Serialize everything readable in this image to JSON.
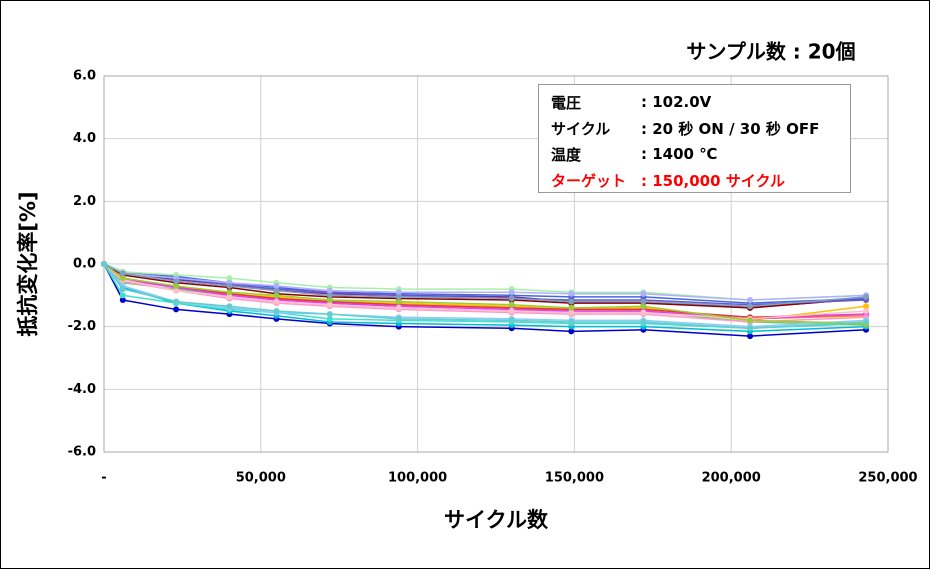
{
  "chart_data": {
    "type": "line",
    "title": "サンプル数 : 20個",
    "x_label": "サイクル数",
    "y_label": "抵抗変化率[%]",
    "annotation": [
      [
        "電圧",
        ": 102.0V"
      ],
      [
        "サイクル",
        ": 20 秒 ON / 30 秒 OFF"
      ],
      [
        "温度",
        ": 1400 ℃"
      ],
      [
        "ターゲット",
        ": 150,000 サイクル"
      ]
    ],
    "xlim": [
      0,
      250000
    ],
    "ylim": [
      -6,
      6
    ],
    "xticks": [
      {
        "value": 0,
        "label": "-"
      },
      {
        "value": 50000,
        "label": "50,000"
      },
      {
        "value": 100000,
        "label": "100,000"
      },
      {
        "value": 150000,
        "label": "150,000"
      },
      {
        "value": 200000,
        "label": "200,000"
      },
      {
        "value": 250000,
        "label": "250,000"
      }
    ],
    "yticks": [
      {
        "value": -6,
        "label": "-6.0"
      },
      {
        "value": -4,
        "label": "-4.0"
      },
      {
        "value": -2,
        "label": "-2.0"
      },
      {
        "value": 0,
        "label": "0.0"
      },
      {
        "value": 2,
        "label": "2.0"
      },
      {
        "value": 4,
        "label": "4.0"
      },
      {
        "value": 6,
        "label": "6.0"
      }
    ],
    "grid": true,
    "x": [
      0,
      6000,
      23000,
      40000,
      55000,
      72000,
      94000,
      130000,
      149000,
      172000,
      206000,
      243000
    ],
    "series": [
      {
        "color": "#0000cc",
        "values": [
          0,
          -1.15,
          -1.45,
          -1.6,
          -1.75,
          -1.9,
          -2.0,
          -2.05,
          -2.15,
          -2.1,
          -2.3,
          -2.1
        ]
      },
      {
        "color": "#00bcd4",
        "values": [
          0,
          -0.75,
          -1.25,
          -1.5,
          -1.65,
          -1.85,
          -1.9,
          -1.95,
          -2.0,
          -2.0,
          -2.15,
          -2.0
        ]
      },
      {
        "color": "#40e0d0",
        "values": [
          0,
          -1.0,
          -1.25,
          -1.45,
          -1.55,
          -1.75,
          -1.8,
          -1.85,
          -1.9,
          -1.9,
          -2.05,
          -1.9
        ]
      },
      {
        "color": "#7cc36e",
        "values": [
          0,
          -0.6,
          -0.8,
          -1.0,
          -1.1,
          -1.25,
          -1.35,
          -1.45,
          -1.55,
          -1.5,
          -1.85,
          -1.95
        ]
      },
      {
        "color": "#ffc000",
        "values": [
          0,
          -0.45,
          -0.75,
          -0.95,
          -1.05,
          -1.2,
          -1.25,
          -1.35,
          -1.45,
          -1.4,
          -1.8,
          -1.35
        ]
      },
      {
        "color": "#ff8c00",
        "values": [
          0,
          -0.5,
          -0.7,
          -0.95,
          -1.1,
          -1.2,
          -1.3,
          -1.4,
          -1.5,
          -1.5,
          -1.75,
          -1.65
        ]
      },
      {
        "color": "#e53935",
        "values": [
          0,
          -0.45,
          -0.75,
          -0.95,
          -1.1,
          -1.2,
          -1.3,
          -1.4,
          -1.45,
          -1.45,
          -1.7,
          -1.6
        ]
      },
      {
        "color": "#e040fb",
        "values": [
          0,
          -0.5,
          -0.75,
          -1.0,
          -1.15,
          -1.25,
          -1.35,
          -1.45,
          -1.5,
          -1.5,
          -1.75,
          -1.6
        ]
      },
      {
        "color": "#ff99cc",
        "values": [
          0,
          -0.55,
          -0.85,
          -1.1,
          -1.25,
          -1.35,
          -1.45,
          -1.55,
          -1.6,
          -1.6,
          -1.85,
          -1.7
        ]
      },
      {
        "color": "#87cefa",
        "values": [
          0,
          -0.7,
          -1.2,
          -1.4,
          -1.55,
          -1.6,
          -1.7,
          -1.75,
          -1.8,
          -1.8,
          -2.0,
          -1.8
        ]
      },
      {
        "color": "#7030a0",
        "values": [
          0,
          -0.3,
          -0.5,
          -0.65,
          -0.85,
          -0.95,
          -1.0,
          -1.05,
          -1.2,
          -1.2,
          -1.4,
          -1.1
        ]
      },
      {
        "color": "#8b0000",
        "values": [
          0,
          -0.35,
          -0.6,
          -0.75,
          -0.95,
          -1.05,
          -1.1,
          -1.15,
          -1.25,
          -1.25,
          -1.4,
          -1.1
        ]
      },
      {
        "color": "#4169e1",
        "values": [
          0,
          -0.25,
          -0.4,
          -0.6,
          -0.75,
          -0.9,
          -0.95,
          -1.0,
          -1.05,
          -1.05,
          -1.25,
          -1.1
        ]
      },
      {
        "color": "#6a5acd",
        "values": [
          0,
          -0.3,
          -0.45,
          -0.65,
          -0.8,
          -0.9,
          -1.0,
          -1.1,
          -1.15,
          -1.15,
          -1.3,
          -1.15
        ]
      },
      {
        "color": "#a8f0a8",
        "values": [
          0,
          -0.25,
          -0.35,
          -0.45,
          -0.6,
          -0.75,
          -0.8,
          -0.8,
          -0.9,
          -0.9,
          -1.15,
          -1.0
        ]
      },
      {
        "color": "#b0b0ff",
        "values": [
          0,
          -0.3,
          -0.45,
          -0.6,
          -0.7,
          -0.85,
          -0.9,
          -0.9,
          -0.95,
          -0.95,
          -1.15,
          -1.0
        ]
      },
      {
        "color": "#ffc0cb",
        "values": [
          0,
          -0.5,
          -0.85,
          -1.05,
          -1.2,
          -1.3,
          -1.4,
          -1.5,
          -1.55,
          -1.55,
          -1.75,
          -1.5
        ]
      },
      {
        "color": "#9acd32",
        "values": [
          0,
          -0.45,
          -0.7,
          -0.9,
          -1.0,
          -1.15,
          -1.2,
          -1.3,
          -1.4,
          -1.35,
          -1.8,
          -1.9
        ]
      },
      {
        "color": "#7f9fbf",
        "values": [
          0,
          -0.3,
          -0.55,
          -0.7,
          -0.85,
          -1.0,
          -1.05,
          -1.1,
          -1.2,
          -1.2,
          -1.35,
          -1.05
        ]
      },
      {
        "color": "#66cccc",
        "values": [
          0,
          -0.8,
          -1.2,
          -1.35,
          -1.5,
          -1.6,
          -1.75,
          -1.8,
          -1.85,
          -1.85,
          -2.05,
          -1.85
        ]
      }
    ]
  }
}
